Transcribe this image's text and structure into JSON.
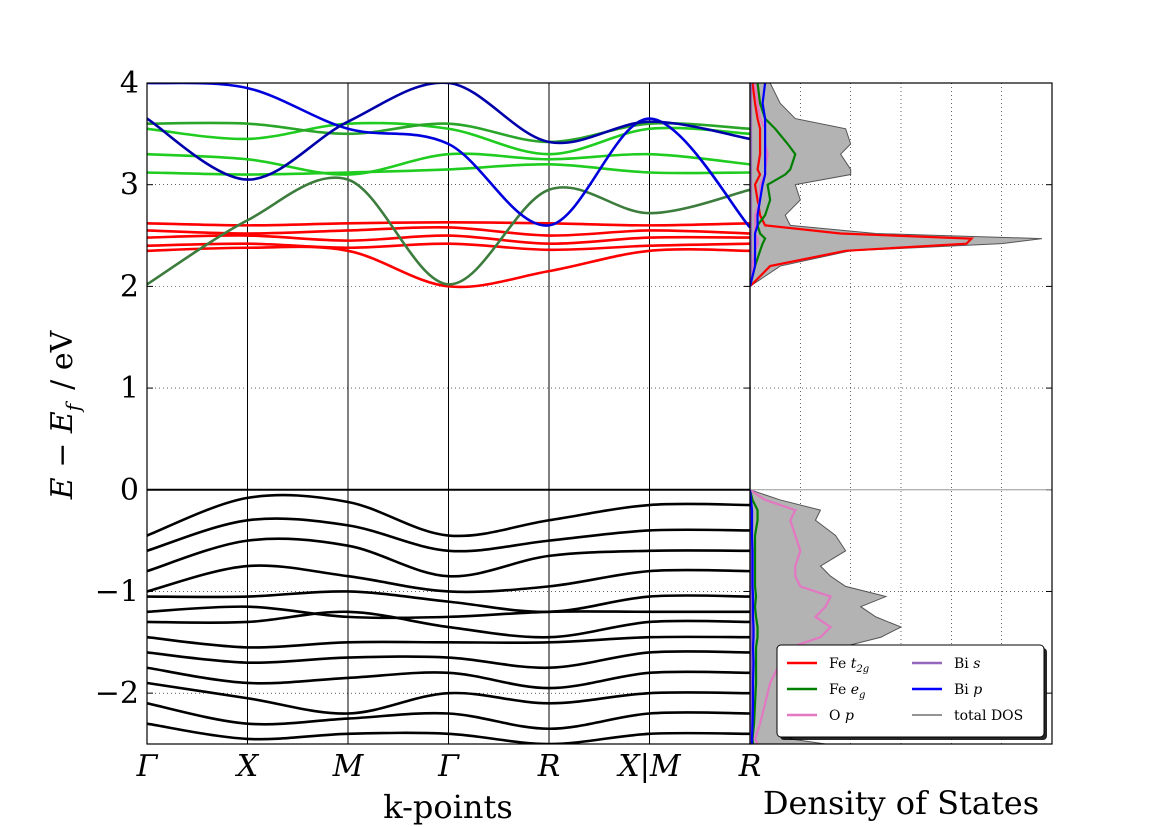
{
  "chart_data": [
    {
      "type": "line",
      "xlabel": "k-points",
      "ylabel_main": "E − E",
      "ylabel_sub": "f",
      "ylabel_unit": "/   eV",
      "ylim": [
        -2.5,
        4
      ],
      "yticks": [
        -2,
        -1,
        0,
        1,
        2,
        3,
        4
      ],
      "ytick_labels": [
        "−2",
        "−1",
        "0",
        "1",
        "2",
        "3",
        "4"
      ],
      "kpoints": [
        "Γ",
        "X",
        "M",
        "Γ",
        "R",
        "X|M",
        "R"
      ],
      "kpoint_positions": [
        0,
        1,
        2,
        3,
        4,
        5,
        6
      ],
      "fermi_level": 0,
      "colors": {
        "Fe_t2g": "#ff0000",
        "Fe_eg": "#008000",
        "O_p": "#e377c2",
        "Bi_s": "#9467bd",
        "Bi_p": "#0000ff",
        "valence": "#000000"
      },
      "conduction_bands": [
        {
          "color": "#ff0000",
          "values": [
            2.62,
            2.6,
            2.62,
            2.63,
            2.62,
            2.6,
            2.62
          ]
        },
        {
          "color": "#ff0000",
          "values": [
            2.55,
            2.52,
            2.55,
            2.58,
            2.5,
            2.55,
            2.52
          ]
        },
        {
          "color": "#ff0000",
          "values": [
            2.48,
            2.5,
            2.45,
            2.5,
            2.42,
            2.48,
            2.48
          ]
        },
        {
          "color": "#ff0000",
          "values": [
            2.4,
            2.42,
            2.38,
            2.42,
            2.36,
            2.4,
            2.42
          ]
        },
        {
          "color": "#ff0000",
          "values": [
            2.35,
            2.38,
            2.35,
            2.0,
            2.15,
            2.35,
            2.35
          ]
        },
        {
          "color": "#1fcc1f",
          "values": [
            3.12,
            3.1,
            3.12,
            3.15,
            3.2,
            3.12,
            3.12
          ]
        },
        {
          "color": "#1fcc1f",
          "values": [
            3.3,
            3.25,
            3.1,
            3.3,
            3.25,
            3.3,
            3.2
          ]
        },
        {
          "color": "#1fcc1f",
          "values": [
            3.55,
            3.45,
            3.6,
            3.55,
            3.3,
            3.55,
            3.5
          ]
        },
        {
          "color": "#2aa52a",
          "values": [
            3.6,
            3.6,
            3.5,
            3.6,
            3.42,
            3.6,
            3.55
          ]
        },
        {
          "color": "#3c7c3c",
          "values": [
            2.02,
            2.65,
            3.05,
            2.02,
            2.95,
            2.72,
            2.95
          ]
        },
        {
          "color": "#0000dd",
          "values": [
            4.0,
            3.95,
            3.55,
            3.4,
            2.6,
            3.65,
            2.58
          ]
        },
        {
          "color": "#0000aa",
          "values": [
            3.65,
            3.05,
            3.62,
            4.0,
            3.42,
            3.62,
            3.45
          ]
        }
      ],
      "valence_bands": [
        {
          "values": [
            -0.45,
            -0.08,
            -0.12,
            -0.45,
            -0.3,
            -0.15,
            -0.15
          ]
        },
        {
          "values": [
            -0.6,
            -0.3,
            -0.35,
            -0.6,
            -0.5,
            -0.4,
            -0.4
          ]
        },
        {
          "values": [
            -0.8,
            -0.5,
            -0.55,
            -0.85,
            -0.65,
            -0.6,
            -0.6
          ]
        },
        {
          "values": [
            -1.0,
            -0.75,
            -0.85,
            -1.0,
            -0.95,
            -0.8,
            -0.8
          ]
        },
        {
          "values": [
            -1.05,
            -1.05,
            -1.0,
            -1.1,
            -1.2,
            -1.05,
            -1.05
          ]
        },
        {
          "values": [
            -1.2,
            -1.15,
            -1.25,
            -1.25,
            -1.2,
            -1.2,
            -1.2
          ]
        },
        {
          "values": [
            -1.3,
            -1.3,
            -1.2,
            -1.35,
            -1.45,
            -1.3,
            -1.3
          ]
        },
        {
          "values": [
            -1.45,
            -1.55,
            -1.5,
            -1.5,
            -1.5,
            -1.45,
            -1.45
          ]
        },
        {
          "values": [
            -1.6,
            -1.7,
            -1.65,
            -1.65,
            -1.75,
            -1.6,
            -1.6
          ]
        },
        {
          "values": [
            -1.75,
            -1.9,
            -1.85,
            -1.8,
            -1.95,
            -1.8,
            -1.8
          ]
        },
        {
          "values": [
            -1.9,
            -2.05,
            -2.2,
            -2.0,
            -2.1,
            -2.0,
            -2.0
          ]
        },
        {
          "values": [
            -2.1,
            -2.3,
            -2.25,
            -2.2,
            -2.35,
            -2.2,
            -2.2
          ]
        },
        {
          "values": [
            -2.3,
            -2.45,
            -2.4,
            -2.4,
            -2.5,
            -2.4,
            -2.4
          ]
        }
      ]
    },
    {
      "type": "area",
      "xlabel": "Density of States",
      "ylim": [
        -2.5,
        4
      ],
      "xlim": [
        0,
        6
      ],
      "legend_placement": "lower-right",
      "energies": [
        -2.5,
        -2.45,
        -2.3,
        -2.1,
        -1.9,
        -1.7,
        -1.55,
        -1.45,
        -1.35,
        -1.25,
        -1.15,
        -1.05,
        -0.95,
        -0.85,
        -0.75,
        -0.6,
        -0.45,
        -0.3,
        -0.2,
        -0.1,
        0,
        2.0,
        2.2,
        2.35,
        2.42,
        2.47,
        2.52,
        2.6,
        2.7,
        2.85,
        3.0,
        3.1,
        3.15,
        3.3,
        3.4,
        3.55,
        3.65,
        3.8,
        4.0
      ],
      "series": [
        {
          "name": "total DOS",
          "values": [
            1.5,
            0.8,
            1.2,
            1.4,
            1.6,
            2.0,
            1.8,
            2.6,
            3.0,
            2.5,
            2.2,
            2.7,
            1.9,
            1.6,
            1.4,
            1.9,
            1.7,
            1.3,
            1.4,
            0.6,
            0,
            0,
            0.6,
            2.0,
            5.0,
            5.8,
            2.5,
            0.8,
            0.7,
            1.0,
            0.9,
            2.0,
            2.0,
            1.8,
            2.0,
            1.9,
            0.9,
            0.6,
            0.4
          ]
        },
        {
          "name": "Fe t_2g",
          "values": [
            0.02,
            0.02,
            0.03,
            0.03,
            0.05,
            0.05,
            0.04,
            0.05,
            0.05,
            0.05,
            0.05,
            0.05,
            0.04,
            0.04,
            0.04,
            0.04,
            0.03,
            0.03,
            0.03,
            0.02,
            0,
            0,
            0.4,
            1.9,
            4.3,
            4.4,
            1.8,
            0.3,
            0.2,
            0.15,
            0.1,
            0.2,
            0.15,
            0.2,
            0.2,
            0.2,
            0.15,
            0.1,
            0.05
          ]
        },
        {
          "name": "Fe e_g",
          "values": [
            0.06,
            0.05,
            0.08,
            0.1,
            0.12,
            0.12,
            0.12,
            0.15,
            0.15,
            0.12,
            0.1,
            0.12,
            0.1,
            0.1,
            0.1,
            0.1,
            0.1,
            0.15,
            0.15,
            0.05,
            0,
            0,
            0.1,
            0.2,
            0.25,
            0.3,
            0.2,
            0.15,
            0.3,
            0.4,
            0.35,
            0.7,
            0.8,
            0.9,
            0.75,
            0.5,
            0.3,
            0.2,
            0.15
          ]
        },
        {
          "name": "O p",
          "values": [
            0.15,
            0.1,
            0.2,
            0.3,
            0.4,
            0.6,
            0.8,
            1.4,
            1.6,
            1.3,
            1.5,
            1.6,
            1.0,
            0.9,
            0.9,
            1.0,
            0.9,
            0.8,
            0.9,
            0.3,
            0,
            0,
            0.05,
            0.1,
            0.15,
            0.15,
            0.1,
            0.1,
            0.1,
            0.2,
            0.2,
            0.3,
            0.3,
            0.35,
            0.3,
            0.3,
            0.2,
            0.15,
            0.1
          ]
        },
        {
          "name": "Bi s",
          "values": [
            0.02,
            0.02,
            0.02,
            0.03,
            0.03,
            0.03,
            0.03,
            0.03,
            0.03,
            0.03,
            0.02,
            0.02,
            0.02,
            0.02,
            0.02,
            0.02,
            0.02,
            0.02,
            0.02,
            0.01,
            0,
            0,
            0.02,
            0.02,
            0.02,
            0.02,
            0.02,
            0.02,
            0.02,
            0.02,
            0.02,
            0.02,
            0.02,
            0.02,
            0.02,
            0.02,
            0.02,
            0.02,
            0.02
          ]
        },
        {
          "name": "Bi p",
          "values": [
            0.04,
            0.04,
            0.05,
            0.06,
            0.06,
            0.07,
            0.06,
            0.07,
            0.07,
            0.06,
            0.06,
            0.06,
            0.05,
            0.05,
            0.05,
            0.05,
            0.04,
            0.04,
            0.04,
            0.02,
            0,
            0,
            0.1,
            0.1,
            0.1,
            0.1,
            0.1,
            0.15,
            0.15,
            0.2,
            0.25,
            0.3,
            0.3,
            0.3,
            0.3,
            0.3,
            0.3,
            0.25,
            0.3
          ]
        }
      ],
      "legend": [
        {
          "label": "Fe ",
          "sub": "t",
          "subsub": "2g",
          "color": "#ff0000"
        },
        {
          "label": "Fe ",
          "sub": "e",
          "subsub": "g",
          "color": "#008000"
        },
        {
          "label": "O ",
          "sub": "p",
          "subsub": "",
          "color": "#e377c2"
        },
        {
          "label": "Bi ",
          "sub": "s",
          "subsub": "",
          "color": "#9467bd"
        },
        {
          "label": "Bi ",
          "sub": "p",
          "subsub": "",
          "color": "#0000ff"
        },
        {
          "label": "total DOS",
          "sub": "",
          "subsub": "",
          "color": "#555555"
        }
      ]
    }
  ]
}
